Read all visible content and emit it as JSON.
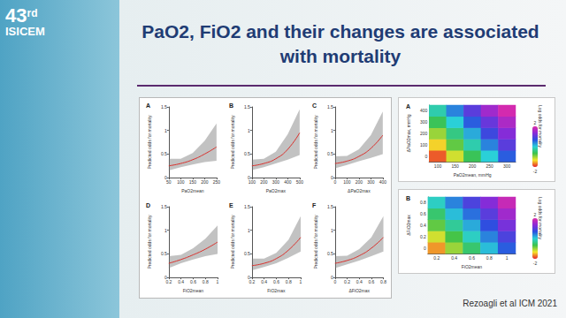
{
  "slide": {
    "logo": {
      "number": "43",
      "suffix": "rd",
      "name": "ISICEM"
    },
    "title": "PaO2, FiO2 and their changes are associated with mortality",
    "citation": "Rezoagli et al ICM 2021"
  },
  "chart_data": [
    {
      "type": "line",
      "label": "A",
      "x_label": "PaO2mean",
      "y_label": "Predicted odds for mortality",
      "x": [
        50,
        100,
        150,
        200,
        250
      ],
      "values": [
        0.25,
        0.3,
        0.38,
        0.5,
        0.65
      ],
      "ci_lower": [
        0.15,
        0.22,
        0.28,
        0.33,
        0.36
      ],
      "ci_upper": [
        0.4,
        0.4,
        0.52,
        0.78,
        1.15
      ],
      "xlim": [
        50,
        250
      ],
      "xticks": [
        50,
        100,
        150,
        200,
        250
      ],
      "ylim": [
        0,
        1.5
      ],
      "yticks": [
        0,
        0.5,
        1,
        1.5
      ],
      "color": "#d9302c",
      "grid": false
    },
    {
      "type": "line",
      "label": "B",
      "x_label": "PaO2max",
      "y_label": "Predicted odds for mortality",
      "x": [
        100,
        200,
        300,
        400,
        500
      ],
      "values": [
        0.25,
        0.3,
        0.4,
        0.6,
        0.95
      ],
      "ci_lower": [
        0.16,
        0.22,
        0.3,
        0.38,
        0.48
      ],
      "ci_upper": [
        0.38,
        0.4,
        0.55,
        0.92,
        1.45
      ],
      "xlim": [
        100,
        500
      ],
      "xticks": [
        100,
        200,
        300,
        400,
        500
      ],
      "ylim": [
        0,
        1.5
      ],
      "yticks": [
        0,
        0.5,
        1,
        1.5
      ],
      "color": "#d9302c",
      "grid": false
    },
    {
      "type": "line",
      "label": "C",
      "x_label": "ΔPaO2max",
      "y_label": "Predicted odds for mortality",
      "x": [
        0,
        100,
        200,
        300,
        400
      ],
      "values": [
        0.3,
        0.35,
        0.45,
        0.62,
        0.9
      ],
      "ci_lower": [
        0.2,
        0.27,
        0.35,
        0.42,
        0.5
      ],
      "ci_upper": [
        0.45,
        0.46,
        0.6,
        0.9,
        1.4
      ],
      "xlim": [
        0,
        400
      ],
      "xticks": [
        0,
        100,
        200,
        300,
        400
      ],
      "ylim": [
        0,
        1.5
      ],
      "yticks": [
        0,
        0.5,
        1,
        1.5
      ],
      "color": "#d9302c",
      "grid": false
    },
    {
      "type": "line",
      "label": "D",
      "x_label": "FiO2mean",
      "y_label": "Predicted odds for mortality",
      "x": [
        0.2,
        0.4,
        0.6,
        0.8,
        1
      ],
      "values": [
        0.3,
        0.38,
        0.48,
        0.6,
        0.75
      ],
      "ci_lower": [
        0.2,
        0.3,
        0.38,
        0.45,
        0.5
      ],
      "ci_upper": [
        0.45,
        0.48,
        0.62,
        0.82,
        1.1
      ],
      "xlim": [
        0.2,
        1
      ],
      "xticks": [
        0.2,
        0.4,
        0.6,
        0.8,
        1
      ],
      "ylim": [
        0,
        1.5
      ],
      "yticks": [
        0,
        0.5,
        1,
        1.5
      ],
      "color": "#d9302c",
      "grid": false
    },
    {
      "type": "line",
      "label": "E",
      "x_label": "FiO2max",
      "y_label": "Predicted odds for mortality",
      "x": [
        0.2,
        0.4,
        0.6,
        0.8,
        1
      ],
      "values": [
        0.25,
        0.3,
        0.4,
        0.58,
        0.85
      ],
      "ci_lower": [
        0.15,
        0.22,
        0.3,
        0.42,
        0.55
      ],
      "ci_upper": [
        0.4,
        0.4,
        0.52,
        0.8,
        1.3
      ],
      "xlim": [
        0.2,
        1
      ],
      "xticks": [
        0.2,
        0.4,
        0.6,
        0.8,
        1
      ],
      "ylim": [
        0,
        1.5
      ],
      "yticks": [
        0,
        0.5,
        1,
        1.5
      ],
      "color": "#d9302c",
      "grid": false
    },
    {
      "type": "line",
      "label": "F",
      "x_label": "ΔFiO2max",
      "y_label": "Predicted odds for mortality",
      "x": [
        0,
        0.2,
        0.4,
        0.6,
        0.8
      ],
      "values": [
        0.3,
        0.36,
        0.46,
        0.62,
        0.85
      ],
      "ci_lower": [
        0.2,
        0.28,
        0.36,
        0.45,
        0.55
      ],
      "ci_upper": [
        0.45,
        0.46,
        0.6,
        0.85,
        1.3
      ],
      "xlim": [
        0,
        0.8
      ],
      "xticks": [
        0,
        0.2,
        0.4,
        0.6,
        0.8
      ],
      "ylim": [
        0,
        1.5
      ],
      "yticks": [
        0,
        0.5,
        1,
        1.5
      ],
      "color": "#d9302c",
      "grid": false
    },
    {
      "type": "heatmap",
      "label": "A",
      "x_label": "PaO2mean, mmHg",
      "y_label": "ΔPaO2max, mmHg",
      "z_label": "Log odds for mortality",
      "x": [
        100,
        150,
        200,
        250,
        300
      ],
      "y": [
        0,
        100,
        200,
        300,
        400
      ],
      "values": [
        [
          -1.8,
          -1.2,
          -0.6,
          0,
          0.6
        ],
        [
          -1.4,
          -0.8,
          -0.2,
          0.4,
          1
        ],
        [
          -1,
          -0.4,
          0.2,
          0.8,
          1.3
        ],
        [
          -0.6,
          0,
          0.6,
          1.1,
          1.6
        ],
        [
          -0.2,
          0.4,
          1,
          1.5,
          1.9
        ]
      ],
      "colorbar_range": [
        -2,
        2
      ],
      "colorbar_ticks": [
        -2,
        2
      ],
      "colors": [
        "#e8202a",
        "#f5e62a",
        "#3cc24a",
        "#2ad0d8",
        "#2a50e0",
        "#8a2ad8",
        "#e02aa8"
      ]
    },
    {
      "type": "heatmap",
      "label": "B",
      "x_label": "FiO2mean",
      "y_label": "ΔFiO2max",
      "z_label": "Log odds for mortality",
      "x": [
        0.2,
        0.4,
        0.6,
        0.8,
        1
      ],
      "y": [
        0,
        0.2,
        0.4,
        0.6,
        0.8
      ],
      "values": [
        [
          -1.6,
          -1,
          -0.5,
          0.1,
          0.6
        ],
        [
          -1.2,
          -0.7,
          -0.1,
          0.4,
          0.9
        ],
        [
          -0.8,
          -0.3,
          0.2,
          0.7,
          1.2
        ],
        [
          -0.5,
          0.1,
          0.5,
          1,
          1.5
        ],
        [
          -0.1,
          0.4,
          0.9,
          1.3,
          1.8
        ]
      ],
      "colorbar_range": [
        -2,
        2
      ],
      "colorbar_ticks": [
        -2,
        2
      ],
      "colors": [
        "#e8202a",
        "#f5e62a",
        "#3cc24a",
        "#2ad0d8",
        "#2a50e0",
        "#8a2ad8",
        "#e02aa8"
      ]
    }
  ]
}
